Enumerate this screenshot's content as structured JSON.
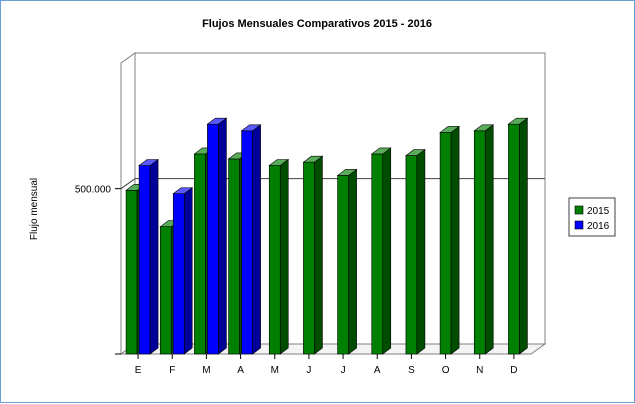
{
  "chart_data": {
    "type": "bar",
    "title": "Flujos Mensuales Comparativos 2015 - 2016",
    "ylabel": "Flujo mensual",
    "xlabel": "",
    "categories": [
      "E",
      "F",
      "M",
      "A",
      "M",
      "J",
      "J",
      "A",
      "S",
      "O",
      "N",
      "D"
    ],
    "series": [
      {
        "name": "2015",
        "color": "#008000",
        "values": [
          495000,
          385000,
          605000,
          590000,
          570000,
          580000,
          540000,
          605000,
          600000,
          670000,
          675000,
          695000
        ]
      },
      {
        "name": "2016",
        "color": "#0000ff",
        "values": [
          570000,
          485000,
          695000,
          675000,
          null,
          null,
          null,
          null,
          null,
          null,
          null,
          null
        ]
      }
    ],
    "ylim": [
      0,
      880000
    ],
    "yticks": [
      500000
    ],
    "ytick_labels": [
      "500.000"
    ],
    "grid": true,
    "legend_position": "right"
  }
}
